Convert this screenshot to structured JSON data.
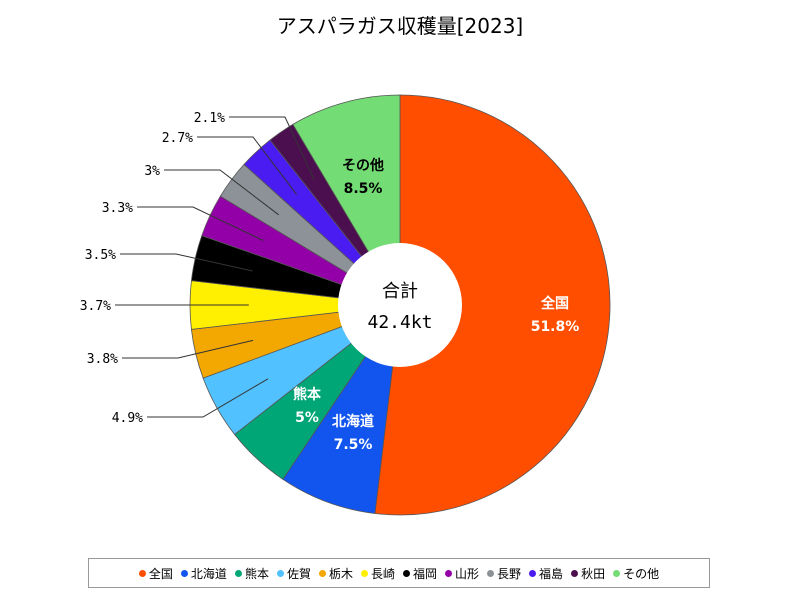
{
  "chart_data": {
    "type": "pie",
    "title": "アスパラガス収穫量[2023]",
    "center_label": "合計",
    "center_value": "42.4kt",
    "slices": [
      {
        "name": "全国",
        "value": 51.8,
        "label": "51.8%",
        "color": "#ff4e00"
      },
      {
        "name": "北海道",
        "value": 7.5,
        "label": "7.5%",
        "color": "#1155ee"
      },
      {
        "name": "熊本",
        "value": 5,
        "label": "5%",
        "color": "#00a676"
      },
      {
        "name": "佐賀",
        "value": 4.9,
        "label": "4.9%",
        "color": "#52c1ff"
      },
      {
        "name": "栃木",
        "value": 3.8,
        "label": "3.8%",
        "color": "#f2a800"
      },
      {
        "name": "長崎",
        "value": 3.7,
        "label": "3.7%",
        "color": "#ffef00"
      },
      {
        "name": "福岡",
        "value": 3.5,
        "label": "3.5%",
        "color": "#000000"
      },
      {
        "name": "山形",
        "value": 3.3,
        "label": "3.3%",
        "color": "#9400a8"
      },
      {
        "name": "長野",
        "value": 3,
        "label": "3%",
        "color": "#8c9298"
      },
      {
        "name": "福島",
        "value": 2.7,
        "label": "2.7%",
        "color": "#4a1cf2"
      },
      {
        "name": "秋田",
        "value": 2.1,
        "label": "2.1%",
        "color": "#4b0f4f"
      },
      {
        "name": "その他",
        "value": 8.5,
        "label": "8.5%",
        "color": "#74dc74"
      }
    ],
    "legend_position": "bottom"
  }
}
